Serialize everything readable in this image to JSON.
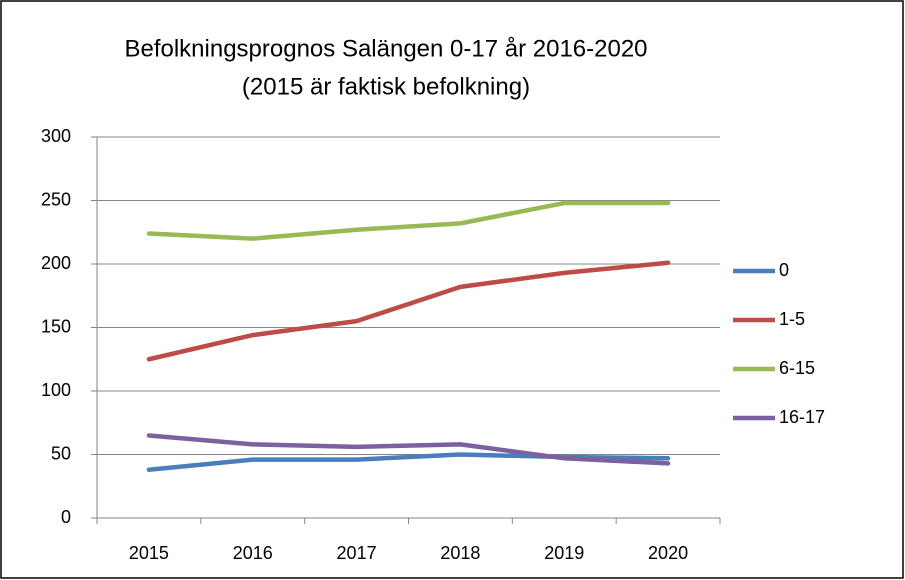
{
  "chart_data": {
    "type": "line",
    "title": "Befolkningsprognos Salängen 0-17 år 2016-2020",
    "subtitle": "(2015 är faktisk befolkning)",
    "categories": [
      "2015",
      "2016",
      "2017",
      "2018",
      "2019",
      "2020"
    ],
    "series": [
      {
        "name": "0",
        "color": "#4a7ebb",
        "values": [
          38,
          46,
          46,
          50,
          48,
          47
        ]
      },
      {
        "name": "1-5",
        "color": "#be4b48",
        "values": [
          125,
          144,
          155,
          182,
          193,
          201
        ]
      },
      {
        "name": "6-15",
        "color": "#98b954",
        "values": [
          224,
          220,
          227,
          232,
          248,
          248
        ]
      },
      {
        "name": "16-17",
        "color": "#7d60a0",
        "values": [
          65,
          58,
          56,
          58,
          47,
          43
        ]
      }
    ],
    "ylim": [
      0,
      300
    ],
    "yticks": [
      0,
      50,
      100,
      150,
      200,
      250,
      300
    ],
    "grid": true,
    "legend": "right"
  }
}
